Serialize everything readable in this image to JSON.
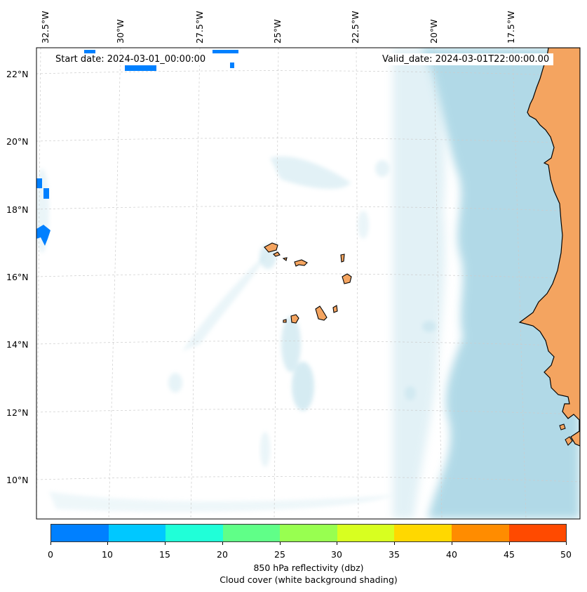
{
  "header": {
    "start_date": "Start date: 2024-03-01_00:00:00",
    "valid_date": "Valid_date: 2024-03-01T22:00:00.00"
  },
  "axes": {
    "lon_labels": [
      "32.5°W",
      "30°W",
      "27.5°W",
      "25°W",
      "22.5°W",
      "20°W",
      "17.5°W"
    ],
    "lat_labels": [
      "22°N",
      "20°N",
      "18°N",
      "16°N",
      "14°N",
      "12°N",
      "10°N"
    ]
  },
  "colorbar": {
    "ticks": [
      "0",
      "10",
      "15",
      "20",
      "25",
      "30",
      "35",
      "40",
      "45",
      "50"
    ],
    "colors": [
      "#0080ff",
      "#00c8ff",
      "#20ffd8",
      "#60ff88",
      "#98ff50",
      "#d8ff20",
      "#ffd800",
      "#ff8c00",
      "#ff4a00"
    ],
    "label": "850 hPa reflectivity (dbz)",
    "sublabel": "Cloud cover (white background shading)"
  },
  "colors": {
    "land": "#f4a460",
    "cloud": "#add8e6",
    "echo": "#0080ff",
    "grid": "#cccccc"
  }
}
